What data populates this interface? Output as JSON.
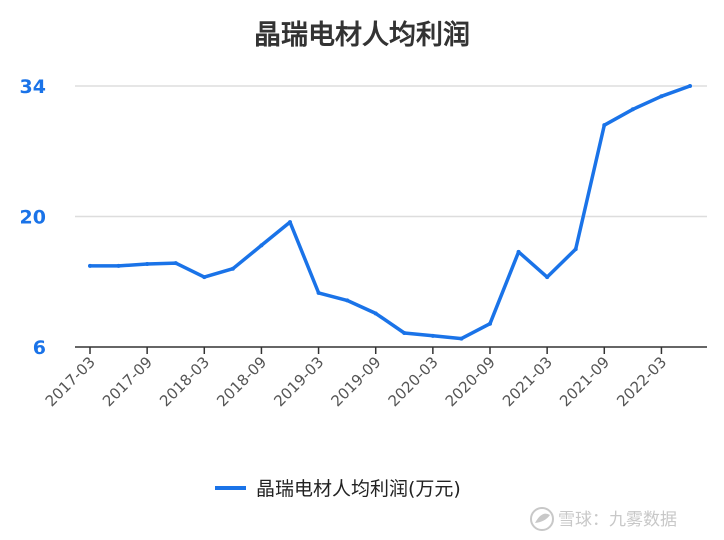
{
  "chart_data": {
    "type": "line",
    "title": "晶瑞电材人均利润",
    "xlabel": "",
    "ylabel": "",
    "ylim": [
      6,
      34
    ],
    "yticks": [
      6,
      20,
      34
    ],
    "grid": true,
    "legend_position": "bottom",
    "x_tick_labels": [
      "2017-03",
      "2017-09",
      "2018-03",
      "2018-09",
      "2019-03",
      "2019-09",
      "2020-03",
      "2020-09",
      "2021-03",
      "2021-09",
      "2022-03"
    ],
    "x": [
      "2017-03",
      "2017-06",
      "2017-09",
      "2017-12",
      "2018-03",
      "2018-06",
      "2018-09",
      "2018-12",
      "2019-03",
      "2019-06",
      "2019-09",
      "2019-12",
      "2020-03",
      "2020-06",
      "2020-09",
      "2020-12",
      "2021-03",
      "2021-06",
      "2021-09",
      "2021-12",
      "2022-03",
      "2022-06"
    ],
    "series": [
      {
        "name": "晶瑞电材人均利润(万元)",
        "color": "#1a73e8",
        "values": [
          14.7,
          14.7,
          14.9,
          15.0,
          13.5,
          14.4,
          16.9,
          19.4,
          11.8,
          11.0,
          9.6,
          7.5,
          7.2,
          6.9,
          8.5,
          16.2,
          13.5,
          16.5,
          29.8,
          31.5,
          32.9,
          34.0
        ]
      }
    ]
  },
  "watermark": {
    "icon": "snowball-logo-icon",
    "text": "雪球：九雾数据"
  }
}
